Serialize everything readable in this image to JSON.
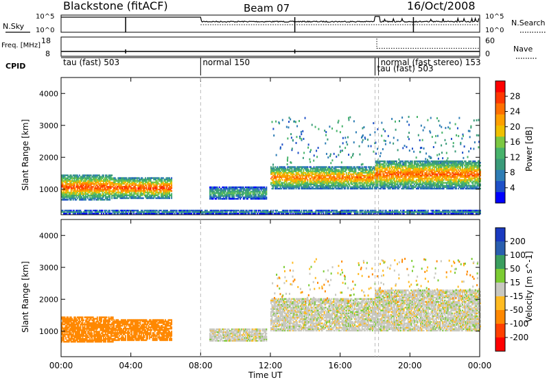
{
  "header": {
    "station": "Blackstone (fitACF)",
    "beam": "Beam 07",
    "date": "16/Oct/2008"
  },
  "colors": {
    "power": [
      "#0000ff",
      "#1e50c8",
      "#2e7db5",
      "#3a9b7a",
      "#47b36b",
      "#7cc842",
      "#f0c000",
      "#ffa000",
      "#ff7000",
      "#ff3800",
      "#ff0000"
    ],
    "velocity": [
      "#ff0000",
      "#ff4000",
      "#ff8800",
      "#ffbb22",
      "#c8c8c0",
      "#7ccc33",
      "#3b9e5f",
      "#2a5faf",
      "#1a3ac0"
    ],
    "velocity_gray": "#c8c8c0"
  },
  "chart_data": [
    {
      "type": "line",
      "title": "Blackstone (fitACF)   Beam 07   16/Oct/2008",
      "panel": "noise",
      "left_label": "N.Sky",
      "right_label": "N.Search",
      "left_ticks": [
        "10^5",
        "10^0"
      ],
      "right_ticks": [
        "10^5",
        "10^0"
      ],
      "x": [
        "00:00",
        "24:00"
      ],
      "note": "Solid line = N.Sky, dotted line = N.Search"
    },
    {
      "type": "line",
      "panel": "frequency",
      "left_label": "Freq. [MHz]",
      "right_label": "Nave",
      "left_ticks": [
        18,
        8
      ],
      "right_ticks": [
        60,
        0
      ],
      "series": [
        {
          "name": "Freq.",
          "points": [
            [
              0,
              10.5
            ],
            [
              24,
              10.5
            ]
          ]
        },
        {
          "name": "Nave",
          "points": [
            [
              8.0,
              60
            ],
            [
              18.1,
              60
            ],
            [
              18.1,
              25
            ],
            [
              24,
              25
            ]
          ]
        }
      ]
    },
    {
      "type": "table",
      "panel": "cpid",
      "label": "CPID",
      "segments": [
        {
          "start": 0.0,
          "end": 8.0,
          "label": "tau (fast) 503"
        },
        {
          "start": 8.0,
          "end": 18.0,
          "label": "normal 150"
        },
        {
          "start": 18.0,
          "end": 18.2,
          "label": "tau (fast) 503"
        },
        {
          "start": 18.2,
          "end": 24.0,
          "label": "normal (fast stereo) 153"
        }
      ]
    },
    {
      "type": "heatmap",
      "panel": "power",
      "ylabel": "Slant Range [km]",
      "ylim": [
        200,
        4500
      ],
      "yticks": [
        1000,
        2000,
        3000,
        4000
      ],
      "colorbar_label": "Power [dB]",
      "colorbar_ticks": [
        4,
        8,
        12,
        16,
        20,
        24,
        28
      ],
      "vmin": 0,
      "vmax": 32,
      "regions": [
        {
          "t0": 0.0,
          "t1": 3.0,
          "r0": 650,
          "r1": 1450,
          "peak": 27
        },
        {
          "t0": 3.0,
          "t1": 6.3,
          "r0": 700,
          "r1": 1350,
          "peak": 28
        },
        {
          "t0": 8.5,
          "t1": 11.8,
          "r0": 680,
          "r1": 1050,
          "peak": 14
        },
        {
          "t0": 12.0,
          "t1": 18.0,
          "r0": 1000,
          "r1": 1700,
          "peak": 25
        },
        {
          "t0": 18.0,
          "t1": 24.0,
          "r0": 1000,
          "r1": 1900,
          "peak": 26
        },
        {
          "t0": 0.0,
          "t1": 24.0,
          "r0": 220,
          "r1": 320,
          "peak": 12
        }
      ]
    },
    {
      "type": "heatmap",
      "panel": "velocity",
      "xlabel": "Time UT",
      "ylabel": "Slant Range [km]",
      "ylim": [
        200,
        4500
      ],
      "yticks": [
        1000,
        2000,
        3000,
        4000
      ],
      "colorbar_label": "Velocity [m s^-1]",
      "colorbar_ticks": [
        200,
        100,
        50,
        15,
        -15,
        -50,
        -100,
        -200
      ],
      "xticks": [
        "00:00",
        "04:00",
        "08:00",
        "12:00",
        "16:00",
        "20:00",
        "00:00"
      ],
      "xlim": [
        0,
        24
      ],
      "regions": [
        {
          "t0": 0.0,
          "t1": 3.0,
          "r0": 650,
          "r1": 1450,
          "value": -75
        },
        {
          "t0": 3.0,
          "t1": 6.3,
          "r0": 700,
          "r1": 1350,
          "value": -75
        },
        {
          "t0": 8.5,
          "t1": 11.8,
          "r0": 680,
          "r1": 1050,
          "value": 0
        },
        {
          "t0": 12.0,
          "t1": 18.0,
          "r0": 1000,
          "r1": 2000,
          "value": 0
        },
        {
          "t0": 18.0,
          "t1": 24.0,
          "r0": 1000,
          "r1": 2300,
          "value": 0
        }
      ]
    }
  ]
}
